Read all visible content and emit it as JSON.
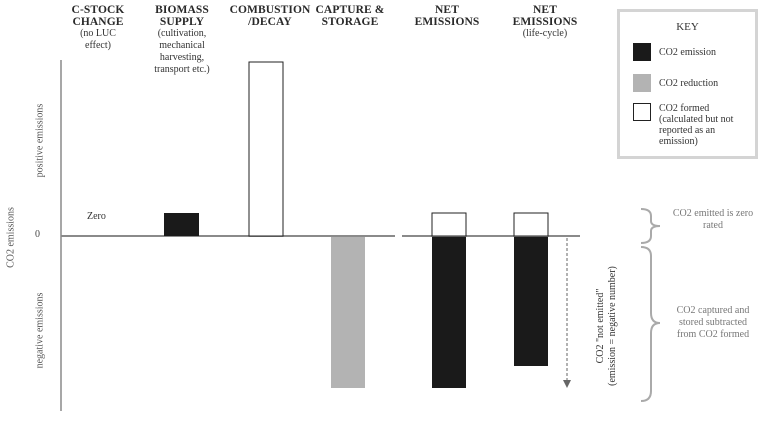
{
  "columns": [
    {
      "title": "C-STOCK\nCHANGE",
      "sub": "(no LUC\neffect)"
    },
    {
      "title": "BIOMASS\nSUPPLY",
      "sub": "(cultivation,\nmechanical\nharvesting,\ntransport etc.)"
    },
    {
      "title": "COMBUSTION\n/DECAY",
      "sub": ""
    },
    {
      "title": "CAPTURE &\nSTORAGE",
      "sub": ""
    },
    {
      "title": "NET\nEMISSIONS",
      "sub": ""
    },
    {
      "title": "NET\nEMISSIONS",
      "sub": "(life-cycle)"
    }
  ],
  "y_axis": {
    "main_label": "CO2 emissions",
    "positive_label": "positive emissions",
    "negative_label": "negative emissions",
    "zero_tick": "0"
  },
  "zero_label": "Zero",
  "not_emitted_label": "CO2 \"not emitted\"\n(emission = negative number)",
  "key": {
    "title": "KEY",
    "items": [
      {
        "label": "CO2 emission",
        "color": "#1a1a1a"
      },
      {
        "label": "CO2 reduction",
        "color": "#b3b3b3"
      },
      {
        "label": "CO2 formed\n(calculated but not\nreported as an\nemission)",
        "color": "#ffffff"
      }
    ]
  },
  "annotations": {
    "zero_rated": "CO2 emitted is zero\nrated",
    "captured": "CO2 captured and\nstored subtracted\nfrom CO2 formed"
  },
  "colors": {
    "emission": "#1a1a1a",
    "reduction": "#b3b3b3",
    "formed": "#ffffff",
    "axis": "#8a8a8a"
  }
}
